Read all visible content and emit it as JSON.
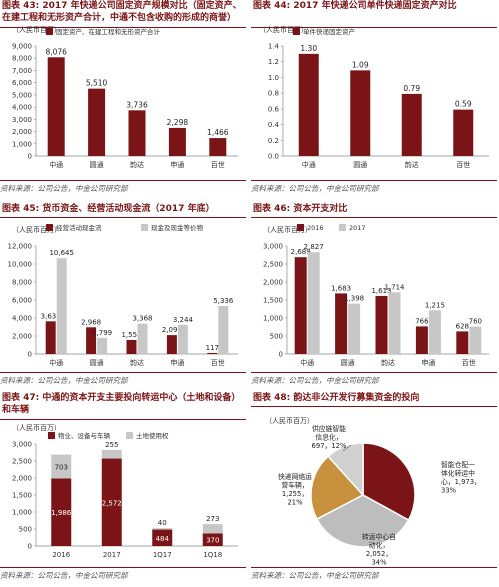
{
  "colors": {
    "dark_red": "#7b1416",
    "gray": "#c7c7c7",
    "tan": "#c8913e",
    "rule": "#7b1416"
  },
  "source_note": "资料来源：公司公告，中金公司研究部",
  "panels": [
    {
      "title": "图表 43: 2017 年快递公司固定资产规模对比（固定资产、在建工程和无形资产合计，中通不包含收购的形成的商誉）"
    },
    {
      "title": "图表 44: 2017 年快递公司单件快递固定资产对比"
    },
    {
      "title": "图表 45: 货币资金、经营活动现金流（2017 年底）"
    },
    {
      "title": "图表 46: 资本开支对比"
    },
    {
      "title": "图表 47: 中通的资本开支主要投向转运中心（土地和设备）和车辆"
    },
    {
      "title": "图表 48: 韵达非公开发行募集资金的投向"
    }
  ],
  "chart_data": [
    {
      "type": "bar",
      "unit": "（人民币百万）",
      "categories": [
        "中通",
        "圆通",
        "韵达",
        "申通",
        "百世"
      ],
      "series": [
        {
          "name": "固定资产、在建工程和无形资产合计",
          "values": [
            8076,
            5510,
            3736,
            2298,
            1466
          ]
        }
      ],
      "ylim": [
        0,
        9000
      ],
      "yticks": [
        0,
        1000,
        2000,
        3000,
        4000,
        5000,
        6000,
        7000,
        8000,
        9000
      ],
      "tick_labels": [
        "0",
        "1,000",
        "2,000",
        "3,000",
        "4,000",
        "5,000",
        "6,000",
        "7,000",
        "8,000",
        "9,000"
      ],
      "data_labels": [
        "8,076",
        "5,510",
        "3,736",
        "2,298",
        "1,466"
      ]
    },
    {
      "type": "bar",
      "unit": "（人民币百万）",
      "categories": [
        "中通",
        "圆通",
        "韵达",
        "百世"
      ],
      "series": [
        {
          "name": "单件快递固定资产",
          "values": [
            1.3,
            1.09,
            0.79,
            0.59
          ]
        }
      ],
      "ylim": [
        0,
        1.4
      ],
      "yticks": [
        0,
        0.2,
        0.4,
        0.6,
        0.8,
        1.0,
        1.2,
        1.4
      ],
      "tick_labels": [
        "0.0",
        "0.2",
        "0.4",
        "0.6",
        "0.8",
        "1.0",
        "1.2",
        "1.4"
      ],
      "data_labels": [
        "1.30",
        "1.09",
        "0.79",
        "0.59"
      ]
    },
    {
      "type": "bar",
      "unit": "（人民币百万）",
      "categories": [
        "中通",
        "圆通",
        "韵达",
        "申通",
        "百世"
      ],
      "series": [
        {
          "name": "经营活动现金流",
          "values": [
            3631,
            2968,
            1556,
            2098,
            117
          ]
        },
        {
          "name": "现金及现金等价物",
          "values": [
            10645,
            1799,
            3368,
            3244,
            5336
          ]
        }
      ],
      "ylim": [
        0,
        12000
      ],
      "yticks": [
        0,
        2000,
        4000,
        6000,
        8000,
        10000,
        12000
      ],
      "tick_labels": [
        "0",
        "2,000",
        "4,000",
        "6,000",
        "8,000",
        "10,000",
        "12,000"
      ],
      "data_labels": [
        [
          "3,631",
          "2,968",
          "1,556",
          "2,098",
          "117"
        ],
        [
          "10,645",
          "1,799",
          "3,368",
          "3,244",
          "5,336"
        ]
      ]
    },
    {
      "type": "bar",
      "unit": "（人民币百万）",
      "categories": [
        "中通",
        "圆通",
        "韵达",
        "申通",
        "百世"
      ],
      "series": [
        {
          "name": "2016",
          "values": [
            2689,
            1683,
            1613,
            766,
            628
          ]
        },
        {
          "name": "2017",
          "values": [
            2827,
            1398,
            1714,
            1215,
            760
          ]
        }
      ],
      "ylim": [
        0,
        3000
      ],
      "yticks": [
        0,
        500,
        1000,
        1500,
        2000,
        2500,
        3000
      ],
      "tick_labels": [
        "0",
        "500",
        "1,000",
        "1,500",
        "2,000",
        "2,500",
        "3,000"
      ],
      "data_labels": [
        [
          "2,689",
          "1,683",
          "1,613",
          "766",
          "628"
        ],
        [
          "2,827",
          "1,398",
          "1,714",
          "1,215",
          "760"
        ]
      ]
    },
    {
      "type": "bar",
      "stacked": true,
      "unit": "（人民币百万）",
      "categories": [
        "2016",
        "2017",
        "1Q17",
        "1Q18"
      ],
      "series": [
        {
          "name": "物业、设备与车辆",
          "values": [
            1986,
            2572,
            484,
            370
          ]
        },
        {
          "name": "土地使用权",
          "values": [
            703,
            255,
            40,
            273
          ]
        }
      ],
      "ylim": [
        0,
        3000
      ],
      "yticks": [
        0,
        500,
        1000,
        1500,
        2000,
        2500,
        3000
      ],
      "tick_labels": [
        "0",
        "500",
        "1,000",
        "1,500",
        "2,000",
        "2,500",
        "3,000"
      ],
      "data_labels": [
        [
          "1,986",
          "2,572",
          "484",
          "370"
        ],
        [
          "703",
          "255",
          "40",
          "273"
        ]
      ]
    },
    {
      "type": "pie",
      "unit": "（人民币百万）",
      "slices": [
        {
          "label": "智能仓配一体化转运中心",
          "value": 1973,
          "pct": "33%",
          "text_lines": [
            "智能仓配一",
            "体化转运中",
            "心，1,973，",
            "33%"
          ]
        },
        {
          "label": "转运中心自动化",
          "value": 2052,
          "pct": "34%",
          "text_lines": [
            "转运中心自",
            "动化，",
            "2,052，",
            "34%"
          ]
        },
        {
          "label": "快递网络运营车辆",
          "value": 1255,
          "pct": "21%",
          "text_lines": [
            "快递网络运",
            "营车辆，",
            "1,255，",
            "21%"
          ]
        },
        {
          "label": "供应链智能信息化",
          "value": 697,
          "pct": "12%",
          "text_lines": [
            "供应链智能",
            "信息化，",
            "697，12%"
          ]
        }
      ]
    }
  ]
}
